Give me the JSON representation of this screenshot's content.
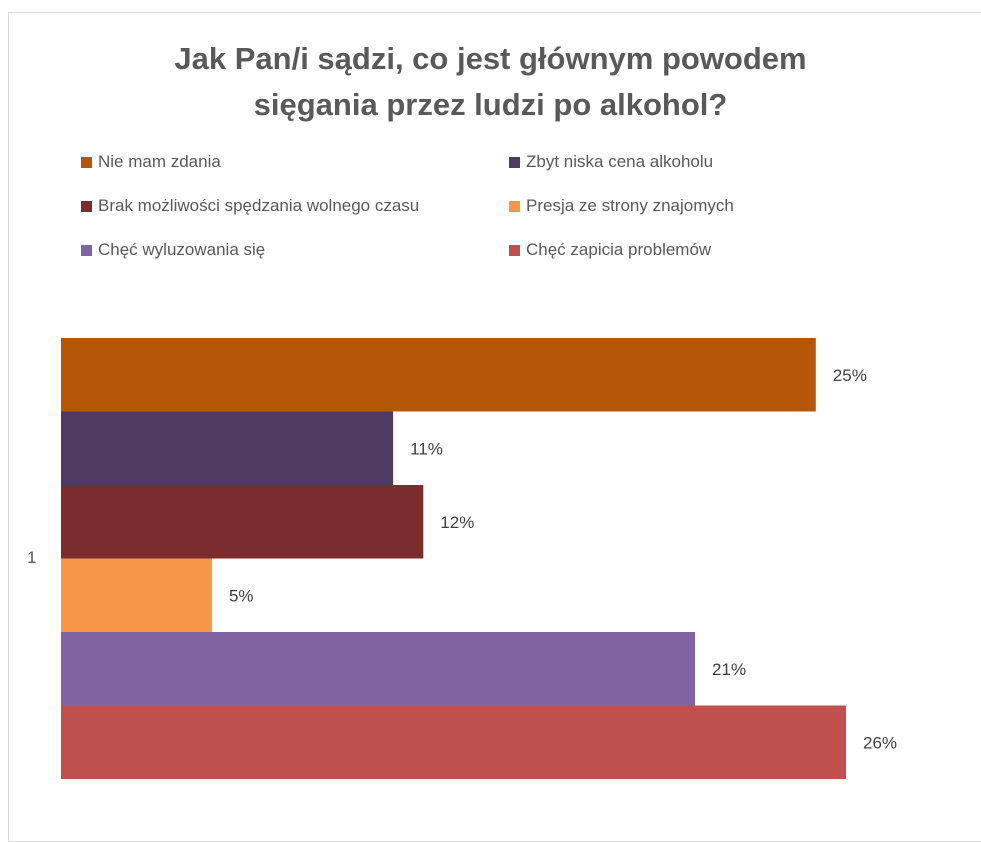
{
  "chart_data": {
    "type": "bar",
    "orientation": "horizontal",
    "title_lines": [
      "Jak Pan/i sądzi, co jest głównym powodem",
      "sięgania przez ludzi po alkohol?"
    ],
    "categories": [
      "1"
    ],
    "series": [
      {
        "name": "Nie mam zdania",
        "values": [
          25
        ],
        "label": "25%",
        "color": "#B65708"
      },
      {
        "name": "Zbyt niska cena alkoholu",
        "values": [
          11
        ],
        "label": "11%",
        "color": "#4F3B62"
      },
      {
        "name": "Brak możliwości spędzania wolnego czasu",
        "values": [
          12
        ],
        "label": "12%",
        "color": "#7B2C2C"
      },
      {
        "name": "Presja ze strony znajomych",
        "values": [
          5
        ],
        "label": "5%",
        "color": "#F79646"
      },
      {
        "name": "Chęć wyluzowania się",
        "values": [
          21
        ],
        "label": "21%",
        "color": "#8064A2"
      },
      {
        "name": "Chęć zapicia problemów",
        "values": [
          26
        ],
        "label": "26%",
        "color": "#C0504D"
      }
    ],
    "xlim": [
      0,
      26
    ],
    "grid": false,
    "legend_position": "top"
  }
}
